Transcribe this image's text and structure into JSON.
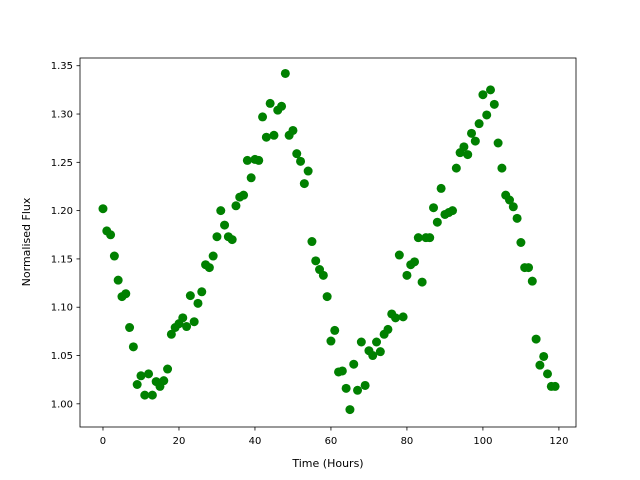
{
  "chart_data": {
    "type": "scatter",
    "xlabel": "Time (Hours)",
    "ylabel": "Normalised Flux",
    "color": "#008000",
    "x": [
      0,
      1,
      2,
      3,
      4,
      5,
      6,
      7,
      8,
      9,
      10,
      11,
      12,
      13,
      14,
      15,
      16,
      17,
      18,
      19,
      20,
      21,
      22,
      23,
      24,
      25,
      26,
      27,
      28,
      29,
      30,
      31,
      32,
      33,
      34,
      35,
      36,
      37,
      38,
      39,
      40,
      41,
      42,
      43,
      44,
      45,
      46,
      47,
      48,
      49,
      50,
      51,
      52,
      53,
      54,
      55,
      56,
      57,
      58,
      59,
      60,
      61,
      62,
      63,
      64,
      65,
      66,
      67,
      68,
      69,
      70,
      71,
      72,
      73,
      74,
      75,
      76,
      77,
      78,
      79,
      80,
      81,
      82,
      83,
      84,
      85,
      86,
      87,
      88,
      89,
      90,
      91,
      92,
      93,
      94,
      95,
      96,
      97,
      98,
      99,
      100,
      101,
      102,
      103,
      104,
      105,
      106,
      107,
      108,
      109,
      110,
      111,
      112,
      113,
      114,
      115,
      116,
      117,
      118,
      119
    ],
    "values": [
      1.202,
      1.179,
      1.175,
      1.153,
      1.128,
      1.111,
      1.114,
      1.079,
      1.059,
      1.02,
      1.029,
      1.009,
      1.031,
      1.009,
      1.023,
      1.018,
      1.024,
      1.036,
      1.072,
      1.079,
      1.083,
      1.089,
      1.08,
      1.112,
      1.085,
      1.104,
      1.116,
      1.144,
      1.141,
      1.153,
      1.173,
      1.2,
      1.185,
      1.173,
      1.17,
      1.205,
      1.214,
      1.216,
      1.252,
      1.234,
      1.253,
      1.252,
      1.297,
      1.276,
      1.311,
      1.278,
      1.304,
      1.308,
      1.342,
      1.278,
      1.283,
      1.259,
      1.251,
      1.228,
      1.241,
      1.168,
      1.148,
      1.139,
      1.133,
      1.111,
      1.065,
      1.076,
      1.033,
      1.034,
      1.016,
      0.994,
      1.041,
      1.014,
      1.064,
      1.019,
      1.055,
      1.05,
      1.064,
      1.054,
      1.072,
      1.077,
      1.093,
      1.089,
      1.154,
      1.09,
      1.133,
      1.144,
      1.147,
      1.172,
      1.126,
      1.172,
      1.172,
      1.203,
      1.188,
      1.223,
      1.196,
      1.198,
      1.2,
      1.244,
      1.26,
      1.266,
      1.258,
      1.28,
      1.272,
      1.29,
      1.32,
      1.299,
      1.325,
      1.31,
      1.27,
      1.244,
      1.216,
      1.211,
      1.204,
      1.192,
      1.167,
      1.141,
      1.141,
      1.127,
      1.067,
      1.04,
      1.049,
      1.031,
      1.018,
      1.018
    ],
    "xlim": [
      -6.05,
      124.5
    ],
    "ylim": [
      0.976,
      1.358
    ],
    "xticks": [
      0,
      20,
      40,
      60,
      80,
      100,
      120
    ],
    "yticks": [
      {
        "value": 1,
        "label": "1.00"
      },
      1.05,
      {
        "value": 1.1,
        "label": "1.10"
      },
      1.15,
      {
        "value": 1.2,
        "label": "1.20"
      },
      1.25,
      {
        "value": 1.3,
        "label": "1.30"
      },
      1.35
    ],
    "grid": false
  }
}
